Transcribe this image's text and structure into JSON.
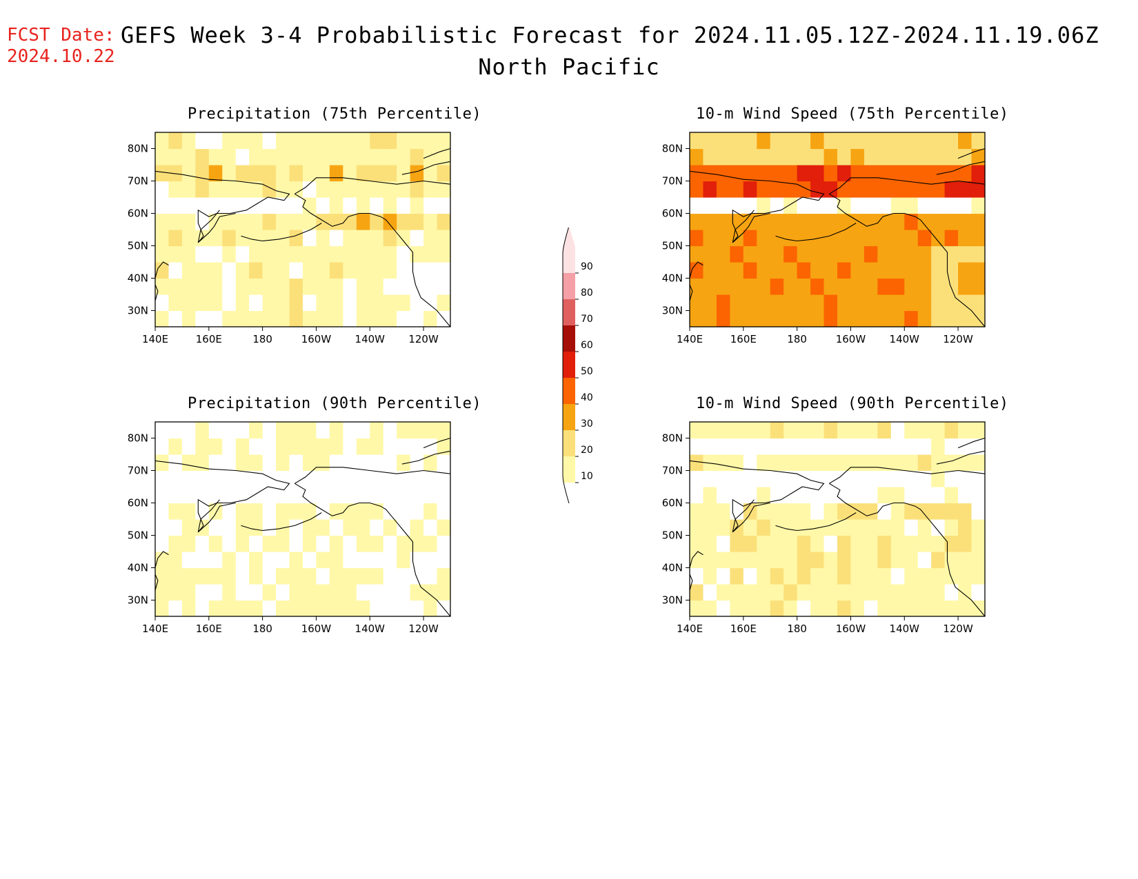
{
  "header": {
    "fcst_label": "FCST Date:",
    "fcst_date": "2024.10.22",
    "title": "GEFS Week 3-4 Probabilistic Forecast for 2024.11.05.12Z-2024.11.19.06Z",
    "subtitle": "North Pacific"
  },
  "axes": {
    "lon_ticks": [
      "140E",
      "160E",
      "180",
      "160W",
      "140W",
      "120W"
    ],
    "lat_ticks": [
      "80N",
      "70N",
      "60N",
      "50N",
      "40N",
      "30N"
    ]
  },
  "colors": {
    "bands": [
      "#fff8a8",
      "#fbe07a",
      "#f7a412",
      "#fb6400",
      "#e11f0b",
      "#a50f08",
      "#e06060",
      "#f4a0a6",
      "#fde2e4"
    ],
    "white": "#ffffff"
  },
  "colorbar": {
    "levels": [
      "10",
      "20",
      "30",
      "40",
      "50",
      "60",
      "70",
      "80",
      "90"
    ]
  },
  "panels": [
    {
      "id": "precip75",
      "title": "Precipitation (75th Percentile)"
    },
    {
      "id": "wind75",
      "title": "10-m Wind Speed (75th Percentile)"
    },
    {
      "id": "precip90",
      "title": "Precipitation (90th Percentile)"
    },
    {
      "id": "wind90",
      "title": "10-m Wind Speed (90th Percentile)"
    }
  ]
}
